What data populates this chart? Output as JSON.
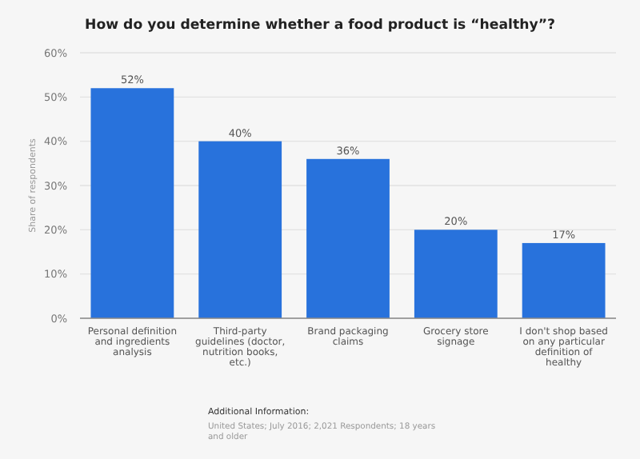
{
  "chart_data": {
    "type": "bar",
    "title": "How do you determine whether a food product is “healthy”?",
    "ylabel": "Share of respondents",
    "categories": [
      "Personal definition and ingredients analysis",
      "Third-party guidelines (doctor, nutrition books, etc.)",
      "Brand packaging claims",
      "Grocery store signage",
      "I don't shop based on any particular definition of healthy"
    ],
    "values": [
      52,
      40,
      36,
      20,
      17
    ],
    "value_labels": [
      "52%",
      "40%",
      "36%",
      "20%",
      "17%"
    ],
    "color": "#2872dc",
    "ylim": [
      0,
      60
    ],
    "yticks": [
      {
        "value": 0,
        "label": "0%"
      },
      {
        "value": 10,
        "label": "10%"
      },
      {
        "value": 20,
        "label": "20%"
      },
      {
        "value": 30,
        "label": "30%"
      },
      {
        "value": 40,
        "label": "40%"
      },
      {
        "value": 50,
        "label": "50%"
      },
      {
        "value": 60,
        "label": "60%"
      }
    ],
    "grid": "y",
    "annotations": [
      "Additional Information:",
      "United States; July 2016; 2,021 Respondents; 18 years and older"
    ]
  }
}
